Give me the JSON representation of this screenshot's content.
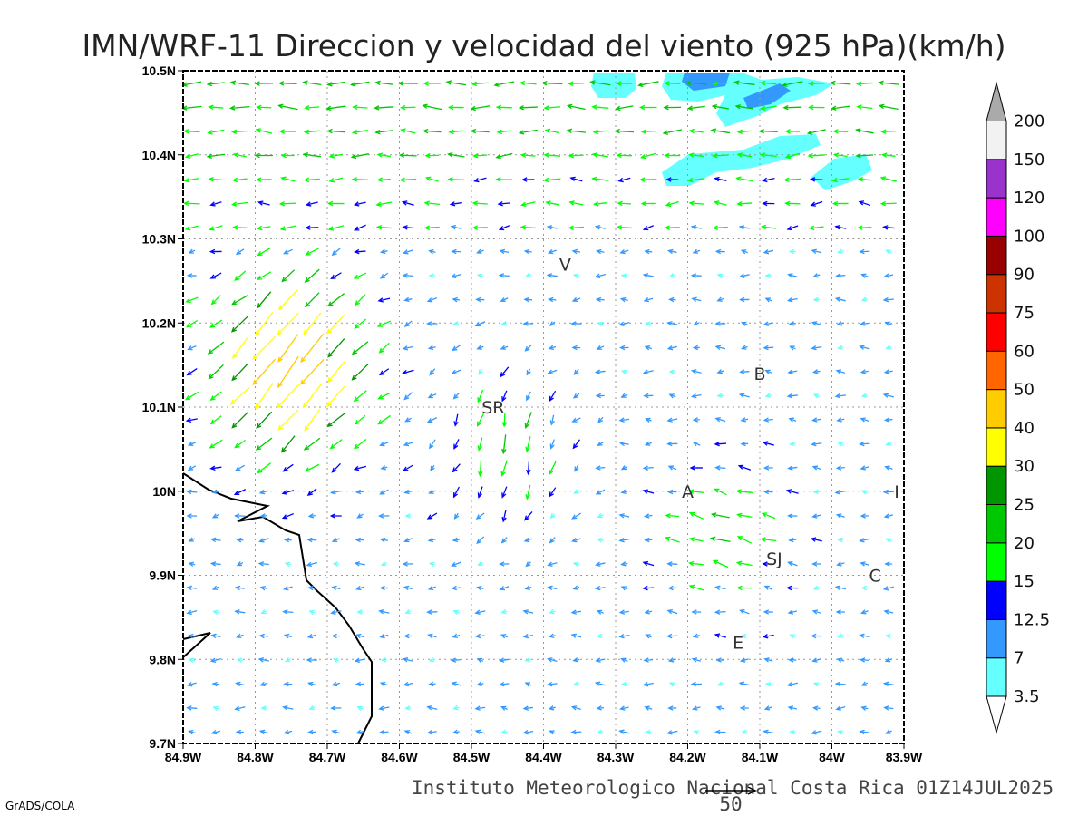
{
  "title": "IMN/WRF-11 Direccion y velocidad del viento (925 hPa)(km/h)",
  "footer": "Instituto Meteorologico Nacional Costa Rica 01Z14JUL2025",
  "credit": "GrADS/COLA",
  "reference_vector": {
    "label": "50",
    "value": 50
  },
  "axes": {
    "x_ticks": [
      "84.9W",
      "84.8W",
      "84.7W",
      "84.6W",
      "84.5W",
      "84.4W",
      "84.3W",
      "84.2W",
      "84.1W",
      "84W",
      "83.9W"
    ],
    "y_ticks": [
      "10.5N",
      "10.4N",
      "10.3N",
      "10.2N",
      "10.1N",
      "10N",
      "9.9N",
      "9.8N",
      "9.7N"
    ]
  },
  "stations": [
    {
      "label": "V",
      "lon": -84.37,
      "lat": 10.27
    },
    {
      "label": "SR",
      "lon": -84.47,
      "lat": 10.1
    },
    {
      "label": "B",
      "lon": -84.1,
      "lat": 10.14
    },
    {
      "label": "A",
      "lon": -84.2,
      "lat": 10.0
    },
    {
      "label": "I",
      "lon": -83.91,
      "lat": 10.0
    },
    {
      "label": "SJ",
      "lon": -84.08,
      "lat": 9.92
    },
    {
      "label": "C",
      "lon": -83.94,
      "lat": 9.9
    },
    {
      "label": "E",
      "lon": -84.13,
      "lat": 9.82
    }
  ],
  "legend": {
    "levels": [
      "3.5",
      "7",
      "12.5",
      "15",
      "20",
      "25",
      "30",
      "40",
      "50",
      "60",
      "75",
      "90",
      "100",
      "120",
      "150",
      "200"
    ],
    "colors": [
      "#66ffff",
      "#3399ff",
      "#0000ff",
      "#00ff00",
      "#00c800",
      "#009600",
      "#ffff00",
      "#ffcc00",
      "#ff6600",
      "#ff0000",
      "#cc3300",
      "#990000",
      "#ff00ff",
      "#9933cc",
      "#f2f2f2"
    ],
    "below_color": "#ffffff",
    "above_color": "#aaaaaa"
  }
}
